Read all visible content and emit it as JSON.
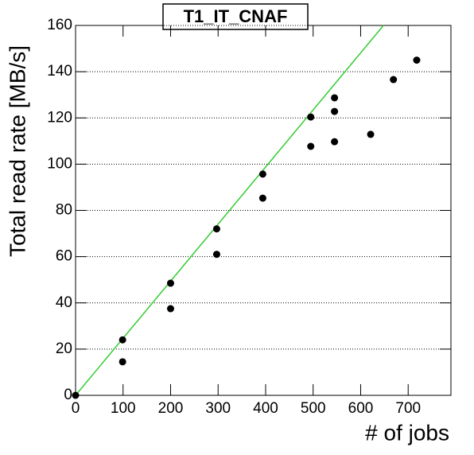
{
  "chart_data": {
    "type": "scatter",
    "title": "T1_IT_CNAF",
    "x_label": "# of jobs",
    "y_label": "Total read rate [MB/s]",
    "x": [
      0,
      99,
      99,
      200,
      200,
      297,
      297,
      394,
      394,
      495,
      495,
      545,
      545,
      545,
      621,
      669,
      718
    ],
    "values": [
      0,
      24,
      14.5,
      48.5,
      37.5,
      72,
      61,
      95.7,
      85.3,
      120.4,
      107.7,
      128.7,
      122.8,
      109.7,
      112.9,
      136.6,
      145
    ],
    "color": "#000000",
    "fit_line": {
      "x": [
        0,
        648
      ],
      "values": [
        0,
        160
      ],
      "color": "#33cc33"
    },
    "xlim": [
      0,
      790
    ],
    "ylim": [
      0,
      160
    ],
    "xticks": [
      0,
      100,
      200,
      300,
      400,
      500,
      600,
      700
    ],
    "yticks": [
      0,
      20,
      40,
      60,
      80,
      100,
      120,
      140,
      160
    ],
    "grid": "y"
  }
}
